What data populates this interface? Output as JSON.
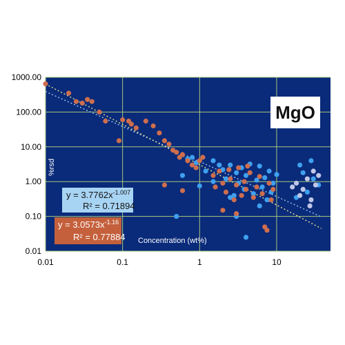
{
  "chart_data": {
    "type": "scatter",
    "title": "MgO",
    "xlabel": "Concentration (wt%)",
    "ylabel": "%rsd",
    "x_scale": "log",
    "y_scale": "log",
    "xlim": [
      0.01,
      50
    ],
    "ylim": [
      0.01,
      1000
    ],
    "x_ticks": [
      "0.01",
      "0.1",
      "1",
      "10"
    ],
    "y_ticks": [
      "1000.00",
      "100.00",
      "10.00",
      "1.00",
      "0.10",
      "0.01"
    ],
    "grid": true,
    "colors": {
      "plot_bg": "#0a2a7a",
      "grid": "#a8c87a",
      "series_blue": "#3fa0f0",
      "series_orange": "#cd6e4e",
      "series_pale": "#c0c8e8",
      "trend_blue": "#8fbfe8",
      "trend_orange": "#d8d890"
    },
    "series": [
      {
        "color": "#3fa0f0",
        "points": [
          [
            0.5,
            0.1
          ],
          [
            0.6,
            1.5
          ],
          [
            0.7,
            4.5
          ],
          [
            0.8,
            5
          ],
          [
            0.9,
            3.5
          ],
          [
            1.0,
            0.75
          ],
          [
            1.2,
            2
          ],
          [
            1.5,
            1
          ],
          [
            1.8,
            3
          ],
          [
            2.0,
            2.2
          ],
          [
            2.2,
            1.2
          ],
          [
            2.5,
            3
          ],
          [
            2.8,
            0.4
          ],
          [
            3.0,
            1.8
          ],
          [
            3.2,
            0.9
          ],
          [
            3.5,
            2.5
          ],
          [
            3.8,
            0.6
          ],
          [
            4.0,
            1.5
          ],
          [
            4.5,
            3.2
          ],
          [
            5.0,
            0.45
          ],
          [
            5.5,
            1.1
          ],
          [
            6.0,
            2.8
          ],
          [
            6.5,
            0.7
          ],
          [
            7.0,
            1.3
          ],
          [
            7.5,
            0.3
          ],
          [
            8.0,
            2
          ],
          [
            9.0,
            0.9
          ],
          [
            10,
            1.6
          ],
          [
            3.0,
            0.1
          ],
          [
            4.0,
            0.025
          ],
          [
            2.5,
            0.35
          ],
          [
            1.5,
            4
          ],
          [
            6.0,
            0.2
          ],
          [
            8.5,
            0.5
          ],
          [
            20,
            3
          ],
          [
            25,
            0.5
          ],
          [
            28,
            4
          ],
          [
            30,
            1.2
          ],
          [
            35,
            0.8
          ],
          [
            22,
            1.8
          ],
          [
            18,
            0.35
          ]
        ]
      },
      {
        "color": "#cd6e4e",
        "points": [
          [
            0.01,
            650
          ],
          [
            0.02,
            350
          ],
          [
            0.025,
            200
          ],
          [
            0.03,
            180
          ],
          [
            0.035,
            230
          ],
          [
            0.04,
            200
          ],
          [
            0.05,
            100
          ],
          [
            0.06,
            55
          ],
          [
            0.09,
            15
          ],
          [
            0.1,
            60
          ],
          [
            0.12,
            55
          ],
          [
            0.13,
            45
          ],
          [
            0.15,
            35
          ],
          [
            0.2,
            55
          ],
          [
            0.25,
            40
          ],
          [
            0.3,
            25
          ],
          [
            0.35,
            15
          ],
          [
            0.4,
            12
          ],
          [
            0.45,
            8
          ],
          [
            0.5,
            7
          ],
          [
            0.55,
            5
          ],
          [
            0.6,
            6
          ],
          [
            0.7,
            4
          ],
          [
            0.8,
            3
          ],
          [
            0.9,
            2.5
          ],
          [
            1.0,
            4
          ],
          [
            1.1,
            5
          ],
          [
            0.35,
            0.8
          ],
          [
            0.6,
            0.55
          ],
          [
            1.5,
            1.5
          ],
          [
            1.8,
            2
          ],
          [
            2.0,
            0.9
          ],
          [
            2.2,
            0.5
          ],
          [
            2.5,
            1.2
          ],
          [
            2.8,
            0.3
          ],
          [
            3.0,
            0.8
          ],
          [
            3.2,
            2.5
          ],
          [
            3.5,
            0.4
          ],
          [
            3.8,
            1
          ],
          [
            4.0,
            0.6
          ],
          [
            4.5,
            1.8
          ],
          [
            5.0,
            0.35
          ],
          [
            5.5,
            0.7
          ],
          [
            6.0,
            1.4
          ],
          [
            6.5,
            0.45
          ],
          [
            7.0,
            0.05
          ],
          [
            7.5,
            0.04
          ],
          [
            8.0,
            0.9
          ],
          [
            8.5,
            0.3
          ],
          [
            9.0,
            0.6
          ],
          [
            2.0,
            0.15
          ],
          [
            3.0,
            0.12
          ],
          [
            1.6,
            0.7
          ],
          [
            2.4,
            2.2
          ],
          [
            4.2,
            2.8
          ]
        ]
      },
      {
        "color": "#c0c8e8",
        "points": [
          [
            18,
            0.9
          ],
          [
            20,
            0.4
          ],
          [
            22,
            0.6
          ],
          [
            25,
            1.2
          ],
          [
            28,
            0.3
          ],
          [
            30,
            2
          ],
          [
            32,
            0.8
          ],
          [
            35,
            1.5
          ],
          [
            16,
            0.7
          ],
          [
            27,
            0.2
          ]
        ]
      }
    ],
    "trendlines": [
      {
        "color": "#8fbfe8",
        "a": 3.7762,
        "b": -1.007,
        "equation_prefix": "y = 3.7762x",
        "equation_exp": "-1.007",
        "r2": "R² = 0.71894"
      },
      {
        "color": "#d8d890",
        "a": 3.0573,
        "b": -1.16,
        "equation_prefix": "y = 3.0573x",
        "equation_exp": "-1.16",
        "r2": "R² = 0.77884"
      }
    ]
  }
}
